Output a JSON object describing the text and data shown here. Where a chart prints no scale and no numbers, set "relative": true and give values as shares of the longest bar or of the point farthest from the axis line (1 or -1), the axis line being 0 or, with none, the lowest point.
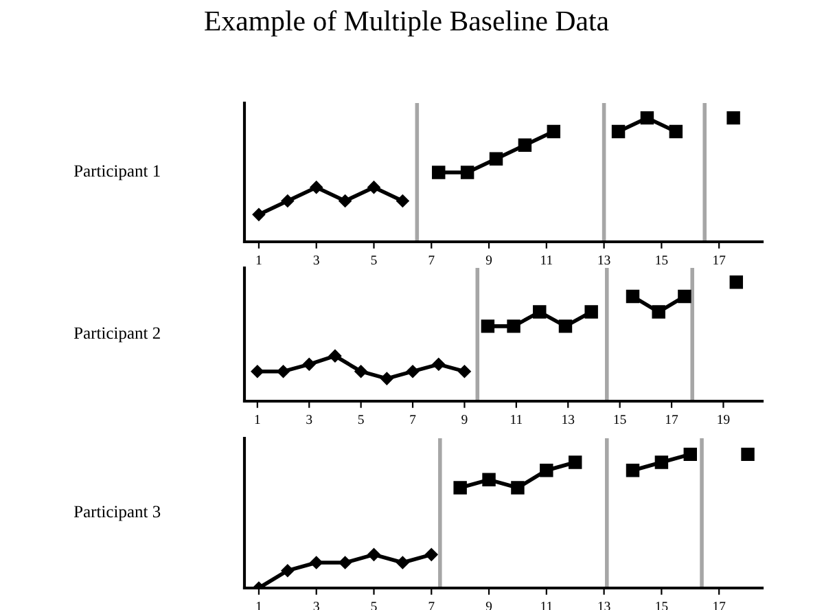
{
  "chart_data": [
    {
      "type": "line",
      "title": "Example of Multiple Baseline Data",
      "ylabel": "Participant 1",
      "relative": true,
      "xlim": [
        0.5,
        18.5
      ],
      "xticks": [
        1,
        3,
        5,
        7,
        9,
        11,
        13,
        15,
        17
      ],
      "tick_labels": "x",
      "ref_lines": [
        {
          "axis": "x",
          "value": 6.5,
          "color": "#a6a6a6"
        },
        {
          "axis": "x",
          "value": 13,
          "color": "#a6a6a6"
        },
        {
          "axis": "x",
          "value": 16.5,
          "color": "#a6a6a6"
        }
      ],
      "series": [
        {
          "color": "#000000",
          "marker": "diamond",
          "x": [
            1,
            2,
            3,
            4,
            5,
            6
          ],
          "values": [
            0.22,
            0.33,
            0.44,
            0.33,
            0.44,
            0.33
          ]
        },
        {
          "color": "#000000",
          "marker": "square",
          "x": [
            7.25,
            8.25,
            9.25,
            10.25,
            11.25
          ],
          "values": [
            0.56,
            0.56,
            0.67,
            0.78,
            0.89
          ]
        },
        {
          "color": "#000000",
          "marker": "square",
          "x": [
            13.5,
            14.5,
            15.5
          ],
          "values": [
            0.89,
            1,
            0.89
          ]
        },
        {
          "color": "#000000",
          "marker": "square",
          "x": [
            17.5
          ],
          "values": [
            1
          ]
        }
      ]
    },
    {
      "type": "line",
      "ylabel": "Participant 2",
      "relative": true,
      "xlim": [
        0.5,
        20.5
      ],
      "xticks": [
        1,
        3,
        5,
        7,
        9,
        11,
        13,
        15,
        17,
        19
      ],
      "tick_labels": "x",
      "ref_lines": [
        {
          "axis": "x",
          "value": 9.5,
          "color": "#a6a6a6"
        },
        {
          "axis": "x",
          "value": 14.5,
          "color": "#a6a6a6"
        },
        {
          "axis": "x",
          "value": 17.8,
          "color": "#a6a6a6"
        }
      ],
      "series": [
        {
          "color": "#000000",
          "marker": "diamond",
          "x": [
            1,
            2,
            3,
            4,
            5,
            6,
            7,
            8,
            9
          ],
          "values": [
            0.25,
            0.25,
            0.31,
            0.38,
            0.25,
            0.19,
            0.25,
            0.31,
            0.25
          ]
        },
        {
          "color": "#000000",
          "marker": "square",
          "x": [
            9.9,
            10.9,
            11.9,
            12.9,
            13.9
          ],
          "values": [
            0.63,
            0.63,
            0.75,
            0.63,
            0.75
          ]
        },
        {
          "color": "#000000",
          "marker": "square",
          "x": [
            15.5,
            16.5,
            17.5
          ],
          "values": [
            0.88,
            0.75,
            0.88
          ]
        },
        {
          "color": "#000000",
          "marker": "square",
          "x": [
            19.5
          ],
          "values": [
            1
          ]
        }
      ]
    },
    {
      "type": "line",
      "ylabel": "Participant 3",
      "relative": true,
      "xlim": [
        0.5,
        18.5
      ],
      "xticks": [
        1,
        3,
        5,
        7,
        9,
        11,
        13,
        15,
        17
      ],
      "tick_labels": "x",
      "ref_lines": [
        {
          "axis": "x",
          "value": 7.3,
          "color": "#a6a6a6"
        },
        {
          "axis": "x",
          "value": 13.1,
          "color": "#a6a6a6"
        },
        {
          "axis": "x",
          "value": 16.4,
          "color": "#a6a6a6"
        }
      ],
      "series": [
        {
          "color": "#000000",
          "marker": "diamond",
          "x": [
            1,
            2,
            3,
            4,
            5,
            6,
            7
          ],
          "values": [
            0,
            0.13,
            0.19,
            0.19,
            0.25,
            0.19,
            0.25
          ]
        },
        {
          "color": "#000000",
          "marker": "square",
          "x": [
            8,
            9,
            10,
            11,
            12
          ],
          "values": [
            0.75,
            0.81,
            0.75,
            0.88,
            0.94
          ]
        },
        {
          "color": "#000000",
          "marker": "square",
          "x": [
            14,
            15,
            16
          ],
          "values": [
            0.88,
            0.94,
            1
          ]
        },
        {
          "color": "#000000",
          "marker": "square",
          "x": [
            18
          ],
          "values": [
            1
          ]
        }
      ]
    }
  ]
}
